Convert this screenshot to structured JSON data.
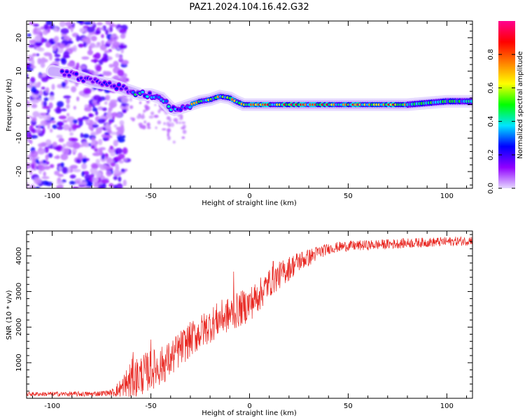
{
  "title": "PAZ1.2024.104.16.42.G32",
  "chart_data": [
    {
      "type": "heatmap",
      "name": "spectrogram",
      "xlabel": "Height of straight line (km)",
      "ylabel": "Frequency (Hz)",
      "xlim": [
        -113,
        113
      ],
      "ylim": [
        -25,
        25
      ],
      "xticks": [
        -100,
        -50,
        0,
        50,
        100
      ],
      "yticks": [
        -20,
        -10,
        0,
        10,
        20
      ],
      "colorbar": {
        "label": "Normalized spectral amplitude",
        "range": [
          0,
          1
        ],
        "ticks": [
          0.0,
          0.2,
          0.4,
          0.6,
          0.8
        ],
        "colors": [
          "#e6d9ff",
          "#9000ff",
          "#0000ff",
          "#00e5ff",
          "#00ff00",
          "#ffff00",
          "#ff8000",
          "#ff0000",
          "#ff0090"
        ]
      },
      "ridge": {
        "x": [
          -100,
          -90,
          -85,
          -80,
          -75,
          -70,
          -65,
          -60,
          -55,
          -50,
          -45,
          -40,
          -38,
          -35,
          -30,
          -25,
          -20,
          -15,
          -10,
          -7,
          -5,
          -3,
          0,
          10,
          20,
          40,
          60,
          80,
          90,
          100,
          113
        ],
        "y": [
          10,
          9,
          8,
          7,
          6.5,
          6,
          5,
          4,
          3,
          3,
          2,
          -1,
          -1.5,
          -1,
          0,
          1,
          1.5,
          2.5,
          2,
          1,
          0.5,
          0,
          0,
          0,
          0,
          0,
          0,
          0,
          0.5,
          1,
          1
        ]
      }
    },
    {
      "type": "line",
      "name": "snr",
      "xlabel": "Height of straight line (km)",
      "ylabel": "SNR (10 * v/v)",
      "xlim": [
        -113,
        113
      ],
      "ylim": [
        0,
        4700
      ],
      "xticks": [
        -100,
        -50,
        0,
        50,
        100
      ],
      "yticks": [
        1000,
        2000,
        3000,
        4000
      ],
      "color": "#e8251f",
      "envelope": {
        "x": [
          -113,
          -80,
          -70,
          -65,
          -60,
          -55,
          -50,
          -45,
          -40,
          -35,
          -30,
          -25,
          -20,
          -15,
          -10,
          -5,
          0,
          5,
          10,
          15,
          20,
          25,
          30,
          35,
          40,
          45,
          50,
          60,
          70,
          80,
          90,
          100,
          110,
          113
        ],
        "y": [
          120,
          120,
          160,
          250,
          500,
          650,
          800,
          900,
          1100,
          1400,
          1650,
          1850,
          2050,
          2250,
          2350,
          2500,
          2650,
          2900,
          3250,
          3450,
          3650,
          3850,
          3950,
          4100,
          4200,
          4250,
          4280,
          4300,
          4330,
          4360,
          4380,
          4400,
          4420,
          4450
        ]
      },
      "noise": {
        "x": [
          -113,
          -70,
          -60,
          -30,
          0,
          20,
          40,
          113
        ],
        "amp": [
          60,
          80,
          600,
          500,
          500,
          350,
          150,
          130
        ]
      },
      "spikes": [
        {
          "x": -59,
          "y": 1300
        },
        {
          "x": -50,
          "y": 1650
        },
        {
          "x": -40,
          "y": 1250
        },
        {
          "x": -28,
          "y": 2000
        },
        {
          "x": -8,
          "y": 3560
        },
        {
          "x": 5,
          "y": 3000
        },
        {
          "x": 12,
          "y": 3850
        }
      ]
    }
  ]
}
